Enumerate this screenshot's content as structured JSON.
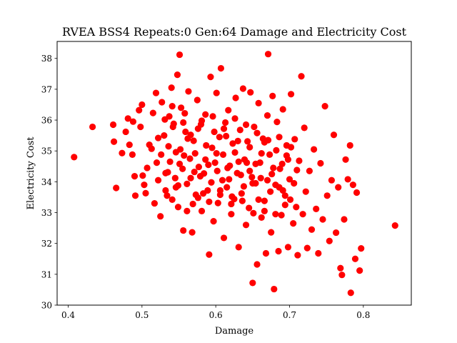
{
  "chart_data": {
    "type": "scatter",
    "title": "RVEA BSS4 Repeats:0 Gen:64 Damage and Electricity Cost",
    "xlabel": "Damage",
    "ylabel": "Electricity Cost",
    "xlim": [
      0.385,
      0.865
    ],
    "ylim": [
      30.0,
      38.55
    ],
    "xticks": [
      0.4,
      0.5,
      0.6,
      0.7,
      0.8
    ],
    "xtick_labels": [
      "0.4",
      "0.5",
      "0.6",
      "0.7",
      "0.8"
    ],
    "yticks": [
      30,
      31,
      32,
      33,
      34,
      35,
      36,
      37,
      38
    ],
    "ytick_labels": [
      "30",
      "31",
      "32",
      "33",
      "34",
      "35",
      "36",
      "37",
      "38"
    ],
    "grid": false,
    "marker_color": "#ff0000",
    "series": [
      {
        "points": [
          [
            0.408,
            34.8
          ],
          [
            0.433,
            35.78
          ],
          [
            0.461,
            35.85
          ],
          [
            0.462,
            35.3
          ],
          [
            0.465,
            33.8
          ],
          [
            0.473,
            34.93
          ],
          [
            0.478,
            35.62
          ],
          [
            0.481,
            36.05
          ],
          [
            0.483,
            35.2
          ],
          [
            0.487,
            34.88
          ],
          [
            0.488,
            35.95
          ],
          [
            0.49,
            34.18
          ],
          [
            0.491,
            33.55
          ],
          [
            0.496,
            36.32
          ],
          [
            0.498,
            35.78
          ],
          [
            0.5,
            36.5
          ],
          [
            0.501,
            34.2
          ],
          [
            0.503,
            33.9
          ],
          [
            0.505,
            33.63
          ],
          [
            0.507,
            34.45
          ],
          [
            0.51,
            35.2
          ],
          [
            0.513,
            35.07
          ],
          [
            0.515,
            36.23
          ],
          [
            0.517,
            33.3
          ],
          [
            0.519,
            36.88
          ],
          [
            0.52,
            34.62
          ],
          [
            0.522,
            34.05
          ],
          [
            0.525,
            32.88
          ],
          [
            0.527,
            36.58
          ],
          [
            0.53,
            35.5
          ],
          [
            0.532,
            33.72
          ],
          [
            0.535,
            34.31
          ],
          [
            0.537,
            36.12
          ],
          [
            0.54,
            37.05
          ],
          [
            0.541,
            33.42
          ],
          [
            0.543,
            35.88
          ],
          [
            0.546,
            34.96
          ],
          [
            0.548,
            37.47
          ],
          [
            0.549,
            33.18
          ],
          [
            0.551,
            38.12
          ],
          [
            0.553,
            36.4
          ],
          [
            0.556,
            32.42
          ],
          [
            0.557,
            34.85
          ],
          [
            0.559,
            35.62
          ],
          [
            0.561,
            33.93
          ],
          [
            0.563,
            36.93
          ],
          [
            0.566,
            34.12
          ],
          [
            0.568,
            32.36
          ],
          [
            0.57,
            35.33
          ],
          [
            0.573,
            33.58
          ],
          [
            0.575,
            36.65
          ],
          [
            0.577,
            34.48
          ],
          [
            0.58,
            35.86
          ],
          [
            0.581,
            33.05
          ],
          [
            0.584,
            34.27
          ],
          [
            0.586,
            36.18
          ],
          [
            0.589,
            33.72
          ],
          [
            0.591,
            31.64
          ],
          [
            0.593,
            37.4
          ],
          [
            0.595,
            35.1
          ],
          [
            0.597,
            32.72
          ],
          [
            0.599,
            34.62
          ],
          [
            0.601,
            36.88
          ],
          [
            0.603,
            33.31
          ],
          [
            0.605,
            35.45
          ],
          [
            0.607,
            37.68
          ],
          [
            0.609,
            34.05
          ],
          [
            0.611,
            32.18
          ],
          [
            0.613,
            35.92
          ],
          [
            0.615,
            33.82
          ],
          [
            0.617,
            36.32
          ],
          [
            0.619,
            34.52
          ],
          [
            0.621,
            32.95
          ],
          [
            0.623,
            35.24
          ],
          [
            0.625,
            33.44
          ],
          [
            0.627,
            36.72
          ],
          [
            0.629,
            34.28
          ],
          [
            0.631,
            31.88
          ],
          [
            0.633,
            35.68
          ],
          [
            0.635,
            33.62
          ],
          [
            0.637,
            37.02
          ],
          [
            0.639,
            34.72
          ],
          [
            0.641,
            32.6
          ],
          [
            0.643,
            35.31
          ],
          [
            0.645,
            33.15
          ],
          [
            0.647,
            36.9
          ],
          [
            0.649,
            34.15
          ],
          [
            0.65,
            30.72
          ],
          [
            0.652,
            35.78
          ],
          [
            0.654,
            33.95
          ],
          [
            0.656,
            31.32
          ],
          [
            0.658,
            36.55
          ],
          [
            0.66,
            34.62
          ],
          [
            0.662,
            32.84
          ],
          [
            0.664,
            35.4
          ],
          [
            0.666,
            33.38
          ],
          [
            0.668,
            31.68
          ],
          [
            0.67,
            36.15
          ],
          [
            0.671,
            38.14
          ],
          [
            0.673,
            34.88
          ],
          [
            0.675,
            32.36
          ],
          [
            0.677,
            36.78
          ],
          [
            0.679,
            30.52
          ],
          [
            0.681,
            33.9
          ],
          [
            0.683,
            35.94
          ],
          [
            0.685,
            31.75
          ],
          [
            0.687,
            34.42
          ],
          [
            0.689,
            32.92
          ],
          [
            0.691,
            36.35
          ],
          [
            0.694,
            33.55
          ],
          [
            0.696,
            35.18
          ],
          [
            0.698,
            31.88
          ],
          [
            0.7,
            34.08
          ],
          [
            0.702,
            36.84
          ],
          [
            0.705,
            32.65
          ],
          [
            0.707,
            35.38
          ],
          [
            0.709,
            33.18
          ],
          [
            0.711,
            31.62
          ],
          [
            0.713,
            34.68
          ],
          [
            0.716,
            37.42
          ],
          [
            0.718,
            32.95
          ],
          [
            0.72,
            35.75
          ],
          [
            0.722,
            33.68
          ],
          [
            0.724,
            31.85
          ],
          [
            0.727,
            34.35
          ],
          [
            0.73,
            32.45
          ],
          [
            0.733,
            35.05
          ],
          [
            0.736,
            33.12
          ],
          [
            0.739,
            31.68
          ],
          [
            0.742,
            34.6
          ],
          [
            0.745,
            32.78
          ],
          [
            0.748,
            36.45
          ],
          [
            0.751,
            33.55
          ],
          [
            0.754,
            32.08
          ],
          [
            0.757,
            34.05
          ],
          [
            0.76,
            35.52
          ],
          [
            0.763,
            32.35
          ],
          [
            0.766,
            33.82
          ],
          [
            0.769,
            31.2
          ],
          [
            0.771,
            30.98
          ],
          [
            0.774,
            32.78
          ],
          [
            0.776,
            34.72
          ],
          [
            0.779,
            34.08
          ],
          [
            0.782,
            35.18
          ],
          [
            0.783,
            30.4
          ],
          [
            0.786,
            33.9
          ],
          [
            0.789,
            31.5
          ],
          [
            0.791,
            33.65
          ],
          [
            0.795,
            31.12
          ],
          [
            0.797,
            31.84
          ],
          [
            0.843,
            32.58
          ],
          [
            0.522,
            35.42
          ],
          [
            0.526,
            34.88
          ],
          [
            0.531,
            36.02
          ],
          [
            0.534,
            33.55
          ],
          [
            0.538,
            34.65
          ],
          [
            0.542,
            35.78
          ],
          [
            0.545,
            34.12
          ],
          [
            0.549,
            33.88
          ],
          [
            0.552,
            35.05
          ],
          [
            0.555,
            34.42
          ],
          [
            0.558,
            36.22
          ],
          [
            0.562,
            35.4
          ],
          [
            0.565,
            34.75
          ],
          [
            0.569,
            33.28
          ],
          [
            0.572,
            34.92
          ],
          [
            0.576,
            35.72
          ],
          [
            0.579,
            34.18
          ],
          [
            0.583,
            33.62
          ],
          [
            0.587,
            35.18
          ],
          [
            0.59,
            34.55
          ],
          [
            0.594,
            33.98
          ],
          [
            0.598,
            35.62
          ],
          [
            0.602,
            34.35
          ],
          [
            0.606,
            33.72
          ],
          [
            0.61,
            34.88
          ],
          [
            0.614,
            35.48
          ],
          [
            0.618,
            34.08
          ],
          [
            0.622,
            33.52
          ],
          [
            0.626,
            34.95
          ],
          [
            0.63,
            35.32
          ],
          [
            0.634,
            34.22
          ],
          [
            0.638,
            33.85
          ],
          [
            0.642,
            34.62
          ],
          [
            0.646,
            35.12
          ],
          [
            0.65,
            33.95
          ],
          [
            0.654,
            34.58
          ],
          [
            0.658,
            33.42
          ],
          [
            0.662,
            34.92
          ],
          [
            0.666,
            35.28
          ],
          [
            0.67,
            34.05
          ],
          [
            0.674,
            33.68
          ],
          [
            0.678,
            34.45
          ],
          [
            0.682,
            35.02
          ],
          [
            0.686,
            33.82
          ],
          [
            0.69,
            34.58
          ],
          [
            0.694,
            33.25
          ],
          [
            0.698,
            34.72
          ],
          [
            0.702,
            35.12
          ],
          [
            0.706,
            33.95
          ],
          [
            0.71,
            34.38
          ],
          [
            0.532,
            34.28
          ],
          [
            0.536,
            35.15
          ],
          [
            0.541,
            36.45
          ],
          [
            0.546,
            33.82
          ],
          [
            0.551,
            34.58
          ],
          [
            0.556,
            35.92
          ],
          [
            0.561,
            33.05
          ],
          [
            0.566,
            35.52
          ],
          [
            0.571,
            34.32
          ],
          [
            0.576,
            33.48
          ],
          [
            0.581,
            35.98
          ],
          [
            0.586,
            34.72
          ],
          [
            0.591,
            33.35
          ],
          [
            0.596,
            36.12
          ],
          [
            0.601,
            34.92
          ],
          [
            0.606,
            33.58
          ],
          [
            0.611,
            35.72
          ],
          [
            0.616,
            34.45
          ],
          [
            0.621,
            33.28
          ],
          [
            0.626,
            36.05
          ],
          [
            0.631,
            34.65
          ],
          [
            0.636,
            33.38
          ],
          [
            0.641,
            35.85
          ],
          [
            0.646,
            34.35
          ],
          [
            0.651,
            32.98
          ],
          [
            0.656,
            35.58
          ],
          [
            0.661,
            34.12
          ],
          [
            0.666,
            33.05
          ],
          [
            0.671,
            35.35
          ],
          [
            0.676,
            34.25
          ],
          [
            0.681,
            32.95
          ],
          [
            0.686,
            35.45
          ],
          [
            0.691,
            33.72
          ],
          [
            0.696,
            34.85
          ],
          [
            0.701,
            33.42
          ]
        ]
      }
    ]
  }
}
